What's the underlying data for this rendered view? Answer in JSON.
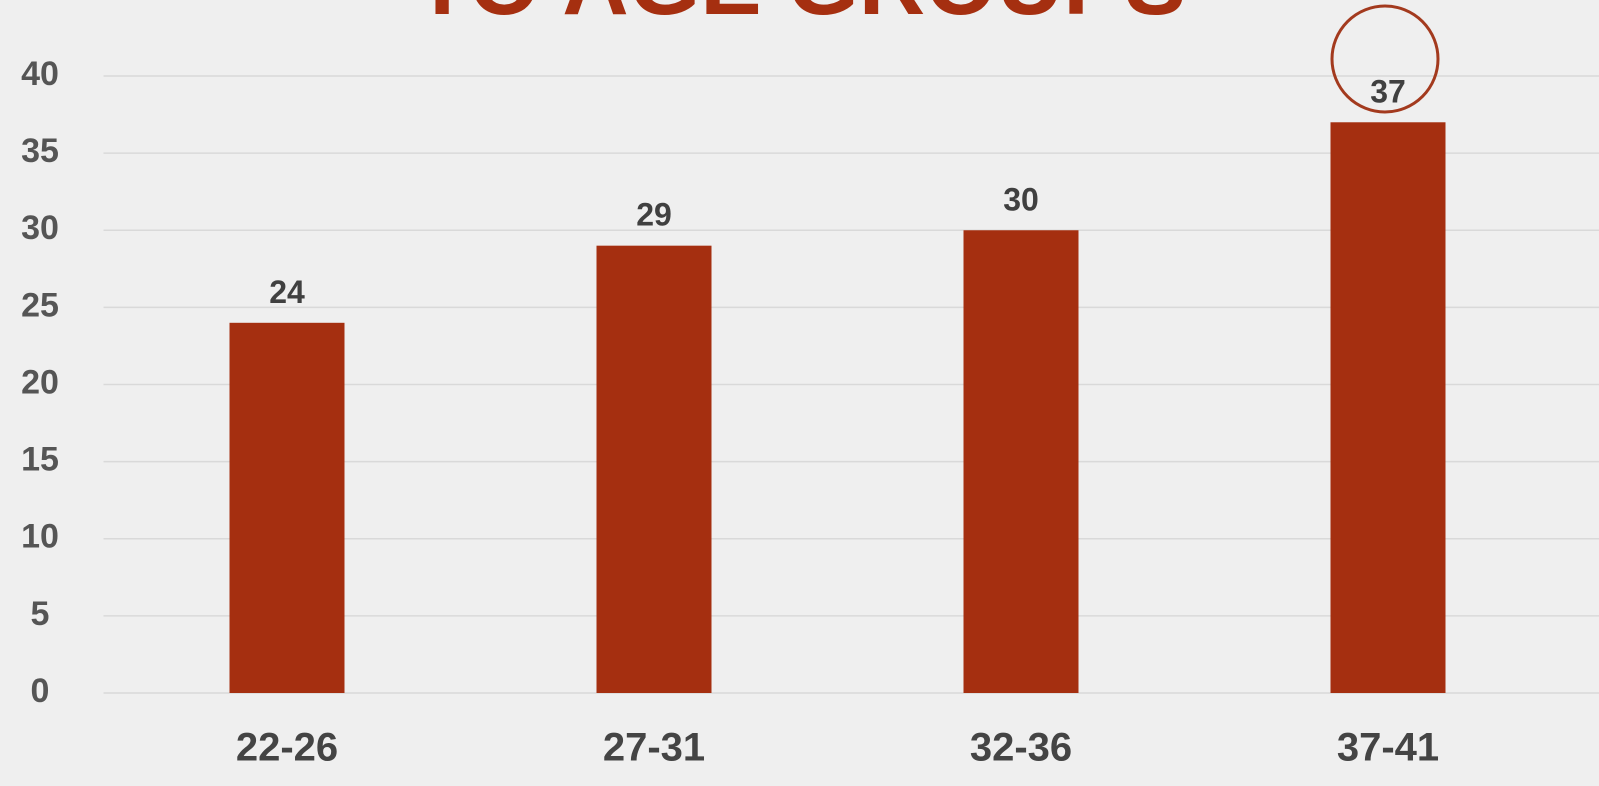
{
  "chart_data": {
    "type": "bar",
    "title": "TO AGE GROUPS",
    "categories": [
      "22-26",
      "27-31",
      "32-36",
      "37-41"
    ],
    "values": [
      24,
      29,
      30,
      37
    ],
    "color": "#a52f10",
    "ylim": [
      0,
      40
    ],
    "yticks": [
      0,
      5,
      10,
      15,
      20,
      25,
      30,
      35,
      40
    ],
    "grid": true
  }
}
